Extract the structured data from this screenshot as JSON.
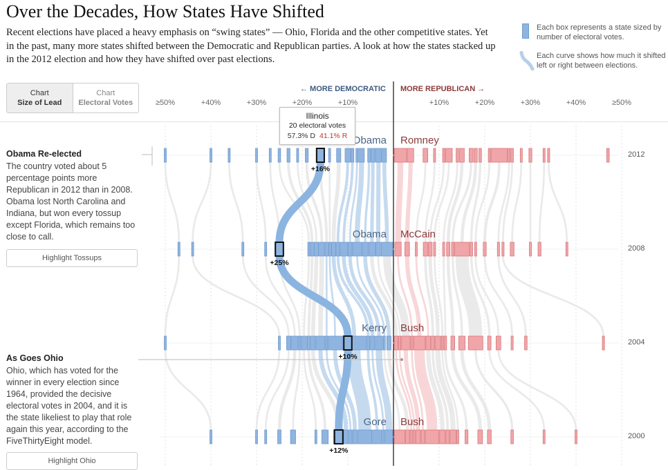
{
  "header": {
    "title": "Over the Decades, How States Have Shifted",
    "dek": "Recent elections have placed a heavy emphasis on “swing states” — Ohio, Florida and the other competitive states. Yet in the past, many more states shifted between the Democratic and Republican parties. A look at how the states stacked up in the 2012 election and how they have shifted over past elections."
  },
  "key": {
    "box_text": "Each box represents a state sized by number of electoral votes.",
    "curve_text": "Each curve shows how much it shifted left or right between elections."
  },
  "toggle": {
    "option1_top": "Chart",
    "option1_bottom": "Size of Lead",
    "option2_top": "Chart",
    "option2_bottom": "Electoral Votes"
  },
  "direction": {
    "dem": "← MORE DEMOCRATIC",
    "rep": "MORE REPUBLICAN →"
  },
  "axis_labels": [
    "≥50%",
    "+40%",
    "+30%",
    "+20%",
    "+10%",
    "+10%",
    "+20%",
    "+30%",
    "+40%",
    "≥50%"
  ],
  "annotations": {
    "obama_title": "Obama Re-elected",
    "obama_text": "The country voted about 5 percentage points more Republican in 2012 than in 2008. Obama lost North Carolina and Indiana, but won every tossup except Florida, which remains too close to call.",
    "tossups_button": "Highlight Tossups",
    "ohio_title": "As Goes Ohio",
    "ohio_text": "Ohio, which has voted for the winner in every election since 1964, provided the decisive electoral votes in 2004, and it is the state likeliest to play that role again this year, according to the FiveThirtyEight model.",
    "ohio_button": "Highlight Ohio"
  },
  "tooltip": {
    "state": "Illinois",
    "electoral_votes": "20 electoral votes",
    "dem_pct": "57.3% D",
    "rep_pct": "41.1% R"
  },
  "colors": {
    "dem": "#8fb4df",
    "dem_stroke": "#6f9bd0",
    "rep": "#f0a5a8",
    "rep_stroke": "#d9797d",
    "flow": "#e8e8e8",
    "highlight": "#8bb5e0"
  },
  "chart_data": {
    "type": "beeswarm-flow",
    "x_unit": "margin of victory (percentage points)",
    "xlim": [
      -50,
      50
    ],
    "elections": [
      {
        "year": "2012",
        "dem": "Obama",
        "rep": "Romney",
        "dem_states": [
          [
            -50,
            3
          ],
          [
            -40,
            4
          ],
          [
            -36,
            3
          ],
          [
            -30,
            3
          ],
          [
            -27,
            4
          ],
          [
            -25,
            6
          ],
          [
            -23,
            7
          ],
          [
            -21,
            4
          ],
          [
            -19,
            7
          ],
          [
            -16,
            20
          ],
          [
            -14,
            4
          ],
          [
            -12,
            10
          ],
          [
            -10,
            12
          ],
          [
            -9,
            7
          ],
          [
            -8,
            3
          ],
          [
            -7,
            13
          ],
          [
            -5,
            6
          ],
          [
            -4,
            9
          ],
          [
            -3,
            14
          ],
          [
            -2,
            10
          ]
        ],
        "rep_states": [
          [
            0.5,
            29
          ],
          [
            3,
            15
          ],
          [
            7,
            11
          ],
          [
            9,
            3
          ],
          [
            11,
            5
          ],
          [
            12,
            16
          ],
          [
            14,
            6
          ],
          [
            15,
            11
          ],
          [
            17,
            9
          ],
          [
            18,
            8
          ],
          [
            19,
            6
          ],
          [
            21,
            4
          ],
          [
            22,
            38
          ],
          [
            23,
            3
          ],
          [
            26,
            6
          ],
          [
            28,
            3
          ],
          [
            30,
            7
          ],
          [
            33,
            4
          ],
          [
            34,
            5
          ],
          [
            47,
            6
          ]
        ],
        "highlight": {
          "x": -16,
          "ev": 20,
          "label": "+16%"
        }
      },
      {
        "year": "2008",
        "dem": "Obama",
        "rep": "McCain",
        "dem_states": [
          [
            -25,
            21
          ],
          [
            -28,
            3
          ],
          [
            -33,
            3
          ],
          [
            -44,
            4
          ],
          [
            -47,
            3
          ],
          [
            -18,
            4
          ],
          [
            -16,
            7
          ],
          [
            -14,
            10
          ],
          [
            -13,
            12
          ],
          [
            -11,
            7
          ],
          [
            -10,
            4
          ],
          [
            -9,
            10
          ],
          [
            -8,
            7
          ],
          [
            -6,
            17
          ],
          [
            -5,
            9
          ],
          [
            -4,
            21
          ],
          [
            -3,
            13
          ],
          [
            -2,
            15
          ],
          [
            -1,
            11
          ],
          [
            -0.5,
            27
          ]
        ],
        "rep_states": [
          [
            1,
            15
          ],
          [
            3,
            11
          ],
          [
            5,
            4
          ],
          [
            7,
            10
          ],
          [
            8,
            9
          ],
          [
            9,
            3
          ],
          [
            11,
            5
          ],
          [
            12,
            8
          ],
          [
            13,
            6
          ],
          [
            14,
            34
          ],
          [
            15,
            6
          ],
          [
            18,
            3
          ],
          [
            20,
            7
          ],
          [
            23,
            5
          ],
          [
            24,
            5
          ],
          [
            26,
            9
          ],
          [
            30,
            3
          ],
          [
            32,
            7
          ],
          [
            38,
            3
          ]
        ],
        "highlight": {
          "x": -25,
          "ev": 21,
          "label": "+25%"
        }
      },
      {
        "year": "2004",
        "dem": "Kerry",
        "rep": "Bush",
        "dem_states": [
          [
            -50,
            3
          ],
          [
            -25,
            3
          ],
          [
            -22,
            10
          ],
          [
            -18,
            15
          ],
          [
            -16,
            4
          ],
          [
            -14,
            12
          ],
          [
            -13,
            7
          ],
          [
            -12,
            10
          ],
          [
            -10,
            21
          ],
          [
            -9,
            4
          ],
          [
            -8,
            31
          ],
          [
            -7,
            55
          ],
          [
            -5,
            7
          ],
          [
            -4,
            10
          ],
          [
            -3,
            17
          ],
          [
            -2,
            4
          ],
          [
            -1,
            10
          ]
        ],
        "rep_states": [
          [
            0.5,
            9
          ],
          [
            1,
            5
          ],
          [
            2,
            20
          ],
          [
            3,
            5
          ],
          [
            5,
            27
          ],
          [
            6,
            11
          ],
          [
            8,
            7
          ],
          [
            9,
            13
          ],
          [
            10,
            4
          ],
          [
            11,
            6
          ],
          [
            13,
            9
          ],
          [
            15,
            15
          ],
          [
            18,
            34
          ],
          [
            21,
            8
          ],
          [
            23,
            11
          ],
          [
            26,
            5
          ],
          [
            29,
            6
          ],
          [
            46,
            5
          ]
        ],
        "highlight": {
          "x": -10,
          "ev": 21,
          "label": "+10%"
        }
      },
      {
        "year": "2000",
        "dem": "Gore",
        "rep": "Bush",
        "dem_states": [
          [
            -40,
            3
          ],
          [
            -30,
            4
          ],
          [
            -28,
            3
          ],
          [
            -25,
            8
          ],
          [
            -22,
            12
          ],
          [
            -17,
            4
          ],
          [
            -15,
            15
          ],
          [
            -12,
            22
          ],
          [
            -10,
            11
          ],
          [
            -8,
            7
          ],
          [
            -7,
            10
          ],
          [
            -5,
            33
          ],
          [
            -3,
            21
          ],
          [
            -1,
            5
          ],
          [
            -0.5,
            18
          ]
        ],
        "rep_states": [
          [
            0.5,
            25
          ],
          [
            1,
            9
          ],
          [
            2,
            5
          ],
          [
            3,
            4
          ],
          [
            4,
            11
          ],
          [
            6,
            8
          ],
          [
            8,
            32
          ],
          [
            10,
            13
          ],
          [
            11,
            8
          ],
          [
            12,
            14
          ],
          [
            14,
            3
          ],
          [
            16,
            7
          ],
          [
            19,
            11
          ],
          [
            21,
            9
          ],
          [
            26,
            6
          ],
          [
            33,
            4
          ],
          [
            40,
            3
          ]
        ],
        "highlight": {
          "x": -12,
          "ev": 22,
          "label": "+12%"
        }
      }
    ]
  }
}
